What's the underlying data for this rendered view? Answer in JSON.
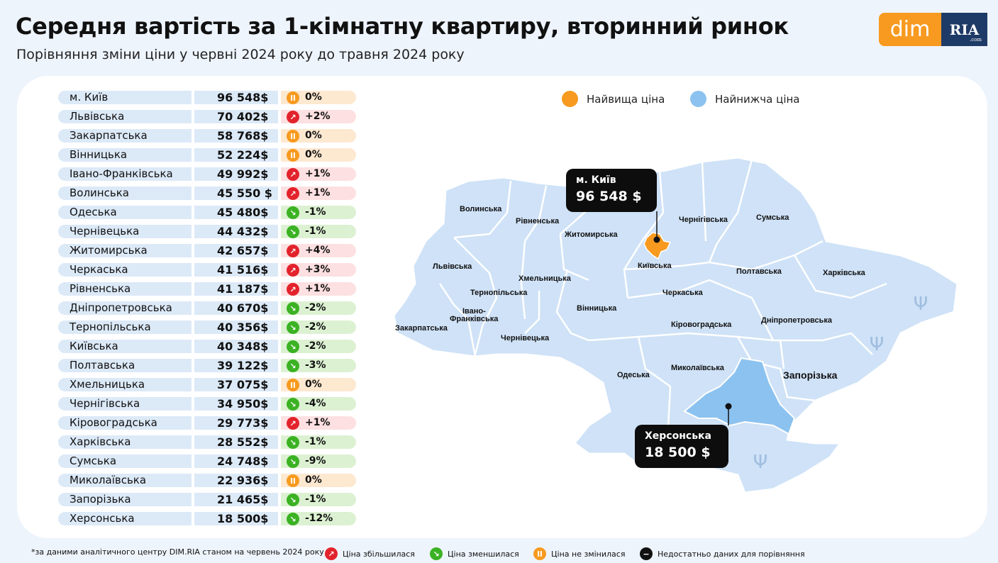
{
  "header": {
    "title": "Середня вартість за 1-кімнатну квартиру, вторинний ринок",
    "subtitle": "Порівняння зміни ціни у червні 2024 року до травня 2024 року"
  },
  "logo": {
    "dim_text": "dim",
    "ria_text": "RIA",
    "ria_suffix": ".com"
  },
  "colors": {
    "highest": "#f79a1f",
    "lowest": "#8cc2ef",
    "map_fill": "#cfe2f7",
    "up": "#e3232c",
    "down": "#3bb223",
    "same": "#f79a1f"
  },
  "legend": {
    "highest": "Найвища ціна",
    "lowest": "Найнижча ціна"
  },
  "chart_data": {
    "type": "table",
    "columns": [
      "region",
      "price",
      "change"
    ],
    "rows": [
      {
        "region": "м. Київ",
        "price": "96 548$",
        "change": "0%",
        "trend": "same"
      },
      {
        "region": "Львівська",
        "price": "70 402$",
        "change": "+2%",
        "trend": "up"
      },
      {
        "region": "Закарпатська",
        "price": "58 768$",
        "change": "0%",
        "trend": "same"
      },
      {
        "region": "Вінницька",
        "price": "52 224$",
        "change": "0%",
        "trend": "same"
      },
      {
        "region": "Івано-Франківська",
        "price": "49 992$",
        "change": "+1%",
        "trend": "up"
      },
      {
        "region": "Волинська",
        "price": "45 550 $",
        "change": "+1%",
        "trend": "up"
      },
      {
        "region": "Одеська",
        "price": "45 480$",
        "change": "-1%",
        "trend": "down"
      },
      {
        "region": "Чернівецька",
        "price": "44 432$",
        "change": "-1%",
        "trend": "down"
      },
      {
        "region": "Житомирська",
        "price": "42 657$",
        "change": "+4%",
        "trend": "up"
      },
      {
        "region": "Черкаська",
        "price": "41 516$",
        "change": "+3%",
        "trend": "up"
      },
      {
        "region": "Рівненська",
        "price": "41 187$",
        "change": "+1%",
        "trend": "up"
      },
      {
        "region": "Дніпропетровська",
        "price": "40 670$",
        "change": "-2%",
        "trend": "down"
      },
      {
        "region": "Тернопільська",
        "price": "40 356$",
        "change": "-2%",
        "trend": "down"
      },
      {
        "region": "Київська",
        "price": "40 348$",
        "change": "-2%",
        "trend": "down"
      },
      {
        "region": "Полтавська",
        "price": "39 122$",
        "change": "-3%",
        "trend": "down"
      },
      {
        "region": "Хмельницька",
        "price": "37 075$",
        "change": "0%",
        "trend": "same"
      },
      {
        "region": "Чернігівська",
        "price": "34 950$",
        "change": "-4%",
        "trend": "down"
      },
      {
        "region": "Кіровоградська",
        "price": "29 773$",
        "change": "+1%",
        "trend": "up"
      },
      {
        "region": "Харківська",
        "price": "28 552$",
        "change": "-1%",
        "trend": "down"
      },
      {
        "region": "Сумська",
        "price": "24 748$",
        "change": "-9%",
        "trend": "down"
      },
      {
        "region": "Миколаївська",
        "price": "22 936$",
        "change": "0%",
        "trend": "same"
      },
      {
        "region": "Запорізька",
        "price": "21 465$",
        "change": "-1%",
        "trend": "down"
      },
      {
        "region": "Херсонська",
        "price": "18 500$",
        "change": "-12%",
        "trend": "down"
      }
    ]
  },
  "map": {
    "labels": {
      "volynska": "Волинська",
      "rivnenska": "Рівненська",
      "zhytomyrska": "Житомирська",
      "chernihivska": "Чернігівська",
      "sumska": "Сумська",
      "lvivska": "Львівська",
      "khmelnytska": "Хмельницька",
      "kyivska": "Київська",
      "ternopilska": "Тернопільська",
      "poltavska": "Полтавська",
      "kharkivska": "Харківська",
      "cherkaska": "Черкаська",
      "ivano1": "Івано-",
      "ivano2": "Франківська",
      "vinnytska": "Вінницька",
      "zakarpatska": "Закарпатська",
      "kirovohradska": "Кіровоградська",
      "dnipropetrovska": "Дніпропетровська",
      "chernivetska": "Чернівецька",
      "odeska": "Одеська",
      "mykolaivska": "Миколаївська",
      "zaporizka": "Запорізька"
    },
    "callout_high": {
      "name": "м. Київ",
      "price": "96 548 $"
    },
    "callout_low": {
      "name": "Херсонська",
      "price": "18 500 $"
    }
  },
  "footnote": {
    "source": "*за даними аналітичного центру DIM.RIA станом на червень 2024 року",
    "up": "Ціна збільшилася",
    "down": "Ціна зменшилася",
    "same": "Ціна не змінилася",
    "none": "Недостатньо даних для порівняння"
  }
}
